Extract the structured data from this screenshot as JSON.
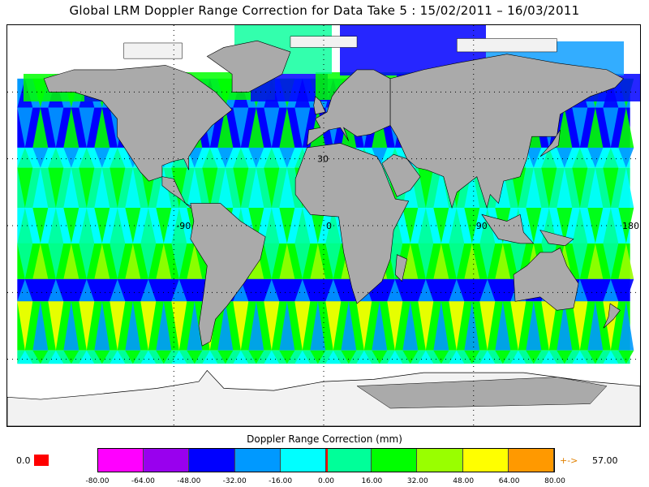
{
  "title": "Global LRM Doppler Range Correction for Data Take 5 : 15/02/2011 – 16/03/2011",
  "map": {
    "longitude_labels": [
      {
        "lon": -90,
        "text": "-90"
      },
      {
        "lon": 0,
        "text": "0"
      },
      {
        "lon": 90,
        "text": "90"
      },
      {
        "lon": 180,
        "text": "180"
      }
    ],
    "latitude_label": {
      "lat": 30,
      "text": "30"
    },
    "projection": "equirectangular",
    "lon_range": [
      -190,
      190
    ],
    "lat_range": [
      -90,
      90
    ],
    "land_color": "#aaaaaa",
    "ice_color": "#f2f2f2",
    "coastline_color": "#000000"
  },
  "colorbar": {
    "title": "Doppler Range Correction (mm)",
    "bins": [
      "#ff00ff",
      "#9900ee",
      "#0000ff",
      "#0099ff",
      "#00ffff",
      "#00ff99",
      "#00ff00",
      "#99ff00",
      "#ffff00",
      "#ff9900"
    ],
    "ticks": [
      "-80.00",
      "-64.00",
      "-48.00",
      "-32.00",
      "-16.00",
      "0.00",
      "16.00",
      "32.00",
      "48.00",
      "64.00",
      "80.00"
    ],
    "range": [
      -80,
      80
    ],
    "zero_line_color": "#ff0000"
  },
  "left_label": "0.0",
  "left_swatch_color": "#ff0000",
  "right_arrow": "+->",
  "right_label": "57.00"
}
